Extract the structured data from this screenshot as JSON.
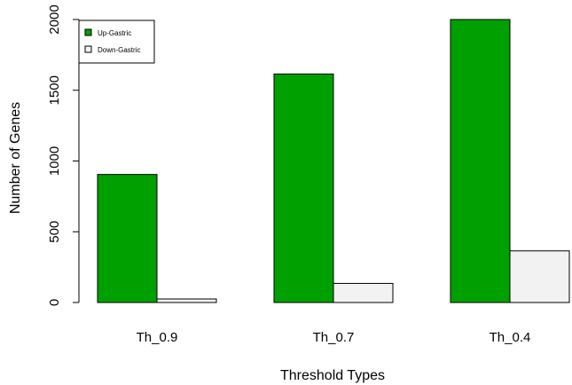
{
  "chart_data": {
    "type": "bar",
    "categories": [
      "Th_0.9",
      "Th_0.7",
      "Th_0.4"
    ],
    "series": [
      {
        "name": "Up-Gastric",
        "values": [
          905,
          1615,
          2000
        ],
        "color": "#00a000"
      },
      {
        "name": "Down-Gastric",
        "values": [
          25,
          135,
          365
        ],
        "color": "#f2f2f2"
      }
    ],
    "title": "",
    "xlabel": "Threshold Types",
    "ylabel": "Number of Genes",
    "ylim": [
      0,
      2000
    ],
    "yticks": [
      0,
      500,
      1000,
      1500,
      2000
    ],
    "grid": false,
    "legend_position": "top-left"
  }
}
